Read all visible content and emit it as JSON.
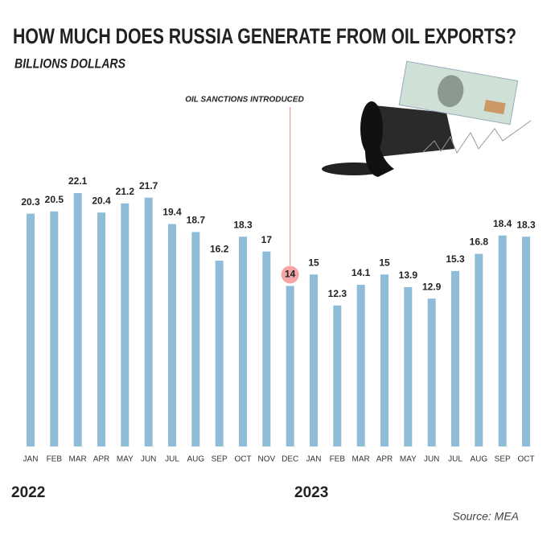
{
  "chart_data": {
    "type": "bar",
    "title": "HOW MUCH DOES RUSSIA GENERATE FROM OIL EXPORTS?",
    "subtitle": "BILLIONS DOLLARS",
    "categories": [
      "JAN",
      "FEB",
      "MAR",
      "APR",
      "MAY",
      "JUN",
      "JUL",
      "AUG",
      "SEP",
      "OCT",
      "NOV",
      "DEC",
      "JAN",
      "FEB",
      "MAR",
      "APR",
      "MAY",
      "JUN",
      "JUL",
      "AUG",
      "SEP",
      "OCT"
    ],
    "values": [
      20.3,
      20.5,
      22.1,
      20.4,
      21.2,
      21.7,
      19.4,
      18.7,
      16.2,
      18.3,
      17,
      14,
      15,
      12.3,
      14.1,
      15,
      13.9,
      12.9,
      15.3,
      16.8,
      18.4,
      18.3
    ],
    "color": "#8fbcd9",
    "year_labels": [
      "2022",
      "2023"
    ],
    "annotation": "OIL SANCTIONS INTRODUCED",
    "source": "Source: MEA"
  }
}
